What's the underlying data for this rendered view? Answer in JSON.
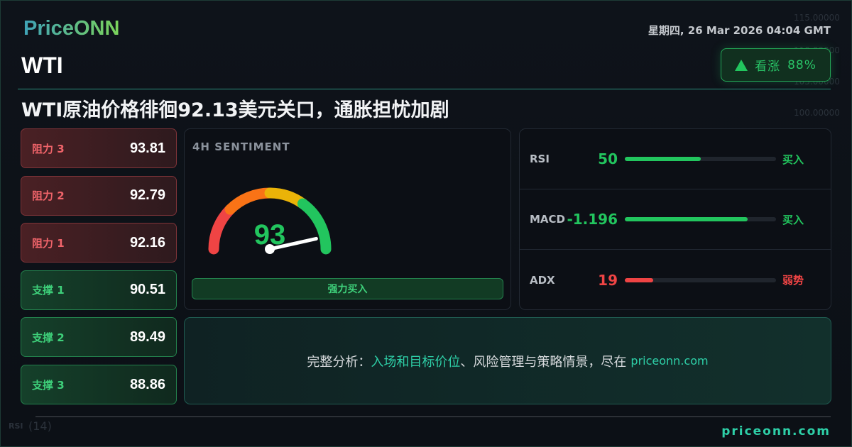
{
  "brand": {
    "logo": "PriceONN",
    "footer_site": "priceonn.com"
  },
  "symbol": "WTI",
  "datetime": "星期四, 26 Mar 2026 04:04 GMT",
  "trend_badge": {
    "icon": "triangle-up-icon",
    "label": "看涨",
    "percent": "88%"
  },
  "headline": "WTI原油价格徘徊92.13美元关口，通胀担忧加剧",
  "levels": [
    {
      "label": "阻力 3",
      "value": "93.81",
      "type": "resistance"
    },
    {
      "label": "阻力 2",
      "value": "92.79",
      "type": "resistance"
    },
    {
      "label": "阻力 1",
      "value": "92.16",
      "type": "resistance"
    },
    {
      "label": "支撑 1",
      "value": "90.51",
      "type": "support"
    },
    {
      "label": "支撑 2",
      "value": "89.49",
      "type": "support"
    },
    {
      "label": "支撑 3",
      "value": "88.86",
      "type": "support"
    }
  ],
  "sentiment": {
    "title": "4H SENTIMENT",
    "value": 93,
    "value_text": "93",
    "signal": "强力买入"
  },
  "indicators": [
    {
      "name": "RSI",
      "value": "50",
      "fill_percent": 50,
      "signal": "买入",
      "color": "#22c55e"
    },
    {
      "name": "MACD",
      "value": "-1.196",
      "fill_percent": 81,
      "signal": "买入",
      "color": "#22c55e"
    },
    {
      "name": "ADX",
      "value": "19",
      "fill_percent": 19,
      "signal": "弱势",
      "color": "#ef4444"
    }
  ],
  "cta": {
    "prefix": "完整分析：",
    "highlight": "入场和目标价位",
    "rest": "、风险管理与策略情景，尽在",
    "site": "priceonn.com"
  },
  "background": {
    "axis_labels": [
      "115.00000",
      "110.00000",
      "105.00000",
      "100.00000"
    ],
    "rsi_label": "RSI",
    "rsi_period": "(14)"
  },
  "colors": {
    "accent": "#2ed0a8",
    "bull": "#22c55e",
    "bear": "#ef4444"
  }
}
